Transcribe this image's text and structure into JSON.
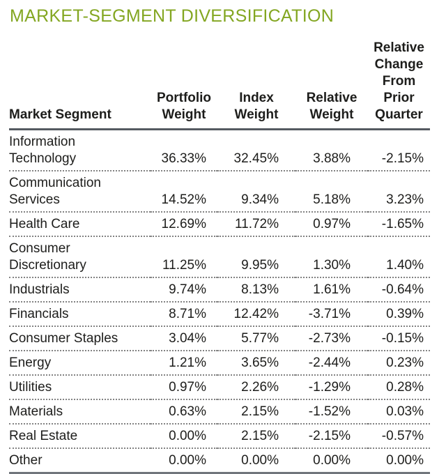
{
  "title": "MARKET-SEGMENT DIVERSIFICATION",
  "colors": {
    "title_green": "#83A621",
    "text": "#1d1d1b",
    "header_rule": "#555a61",
    "bottom_rule": "#70757b",
    "dotted_separator": "#828282"
  },
  "table": {
    "headers": [
      {
        "id": "market-segment",
        "lines": [
          "Market Segment"
        ]
      },
      {
        "id": "portfolio-weight",
        "lines": [
          "Portfolio",
          "Weight"
        ]
      },
      {
        "id": "index-weight",
        "lines": [
          "Index",
          "Weight"
        ]
      },
      {
        "id": "relative-weight",
        "lines": [
          "Relative",
          "Weight"
        ]
      },
      {
        "id": "relative-change-from-prior-quarter",
        "lines": [
          "Relative",
          "Change",
          "From Prior",
          "Quarter"
        ]
      }
    ],
    "rows": [
      {
        "segment_lines": [
          "Information",
          "Technology"
        ],
        "portfolio_weight": "36.33%",
        "index_weight": "32.45%",
        "relative_weight": "3.88%",
        "relative_change": "-2.15%"
      },
      {
        "segment_lines": [
          "Communication",
          "Services"
        ],
        "portfolio_weight": "14.52%",
        "index_weight": "9.34%",
        "relative_weight": "5.18%",
        "relative_change": "3.23%"
      },
      {
        "segment_lines": [
          "Health Care"
        ],
        "portfolio_weight": "12.69%",
        "index_weight": "11.72%",
        "relative_weight": "0.97%",
        "relative_change": "-1.65%"
      },
      {
        "segment_lines": [
          "Consumer",
          "Discretionary"
        ],
        "portfolio_weight": "11.25%",
        "index_weight": "9.95%",
        "relative_weight": "1.30%",
        "relative_change": "1.40%"
      },
      {
        "segment_lines": [
          "Industrials"
        ],
        "portfolio_weight": "9.74%",
        "index_weight": "8.13%",
        "relative_weight": "1.61%",
        "relative_change": "-0.64%"
      },
      {
        "segment_lines": [
          "Financials"
        ],
        "portfolio_weight": "8.71%",
        "index_weight": "12.42%",
        "relative_weight": "-3.71%",
        "relative_change": "0.39%"
      },
      {
        "segment_lines": [
          "Consumer Staples"
        ],
        "portfolio_weight": "3.04%",
        "index_weight": "5.77%",
        "relative_weight": "-2.73%",
        "relative_change": "-0.15%"
      },
      {
        "segment_lines": [
          "Energy"
        ],
        "portfolio_weight": "1.21%",
        "index_weight": "3.65%",
        "relative_weight": "-2.44%",
        "relative_change": "0.23%"
      },
      {
        "segment_lines": [
          "Utilities"
        ],
        "portfolio_weight": "0.97%",
        "index_weight": "2.26%",
        "relative_weight": "-1.29%",
        "relative_change": "0.28%"
      },
      {
        "segment_lines": [
          "Materials"
        ],
        "portfolio_weight": "0.63%",
        "index_weight": "2.15%",
        "relative_weight": "-1.52%",
        "relative_change": "0.03%"
      },
      {
        "segment_lines": [
          "Real Estate"
        ],
        "portfolio_weight": "0.00%",
        "index_weight": "2.15%",
        "relative_weight": "-2.15%",
        "relative_change": "-0.57%"
      },
      {
        "segment_lines": [
          "Other"
        ],
        "portfolio_weight": "0.00%",
        "index_weight": "0.00%",
        "relative_weight": "0.00%",
        "relative_change": "0.00%"
      }
    ]
  },
  "chart_data": {
    "type": "table",
    "title": "MARKET-SEGMENT DIVERSIFICATION",
    "columns": [
      "Market Segment",
      "Portfolio Weight",
      "Index Weight",
      "Relative Weight",
      "Relative Change From Prior Quarter"
    ],
    "rows": [
      [
        "Information Technology",
        36.33,
        32.45,
        3.88,
        -2.15
      ],
      [
        "Communication Services",
        14.52,
        9.34,
        5.18,
        3.23
      ],
      [
        "Health Care",
        12.69,
        11.72,
        0.97,
        -1.65
      ],
      [
        "Consumer Discretionary",
        11.25,
        9.95,
        1.3,
        1.4
      ],
      [
        "Industrials",
        9.74,
        8.13,
        1.61,
        -0.64
      ],
      [
        "Financials",
        8.71,
        12.42,
        -3.71,
        0.39
      ],
      [
        "Consumer Staples",
        3.04,
        5.77,
        -2.73,
        -0.15
      ],
      [
        "Energy",
        1.21,
        3.65,
        -2.44,
        0.23
      ],
      [
        "Utilities",
        0.97,
        2.26,
        -1.29,
        0.28
      ],
      [
        "Materials",
        0.63,
        2.15,
        -1.52,
        0.03
      ],
      [
        "Real Estate",
        0.0,
        2.15,
        -2.15,
        -0.57
      ],
      [
        "Other",
        0.0,
        0.0,
        0.0,
        0.0
      ]
    ],
    "units": "percent"
  }
}
